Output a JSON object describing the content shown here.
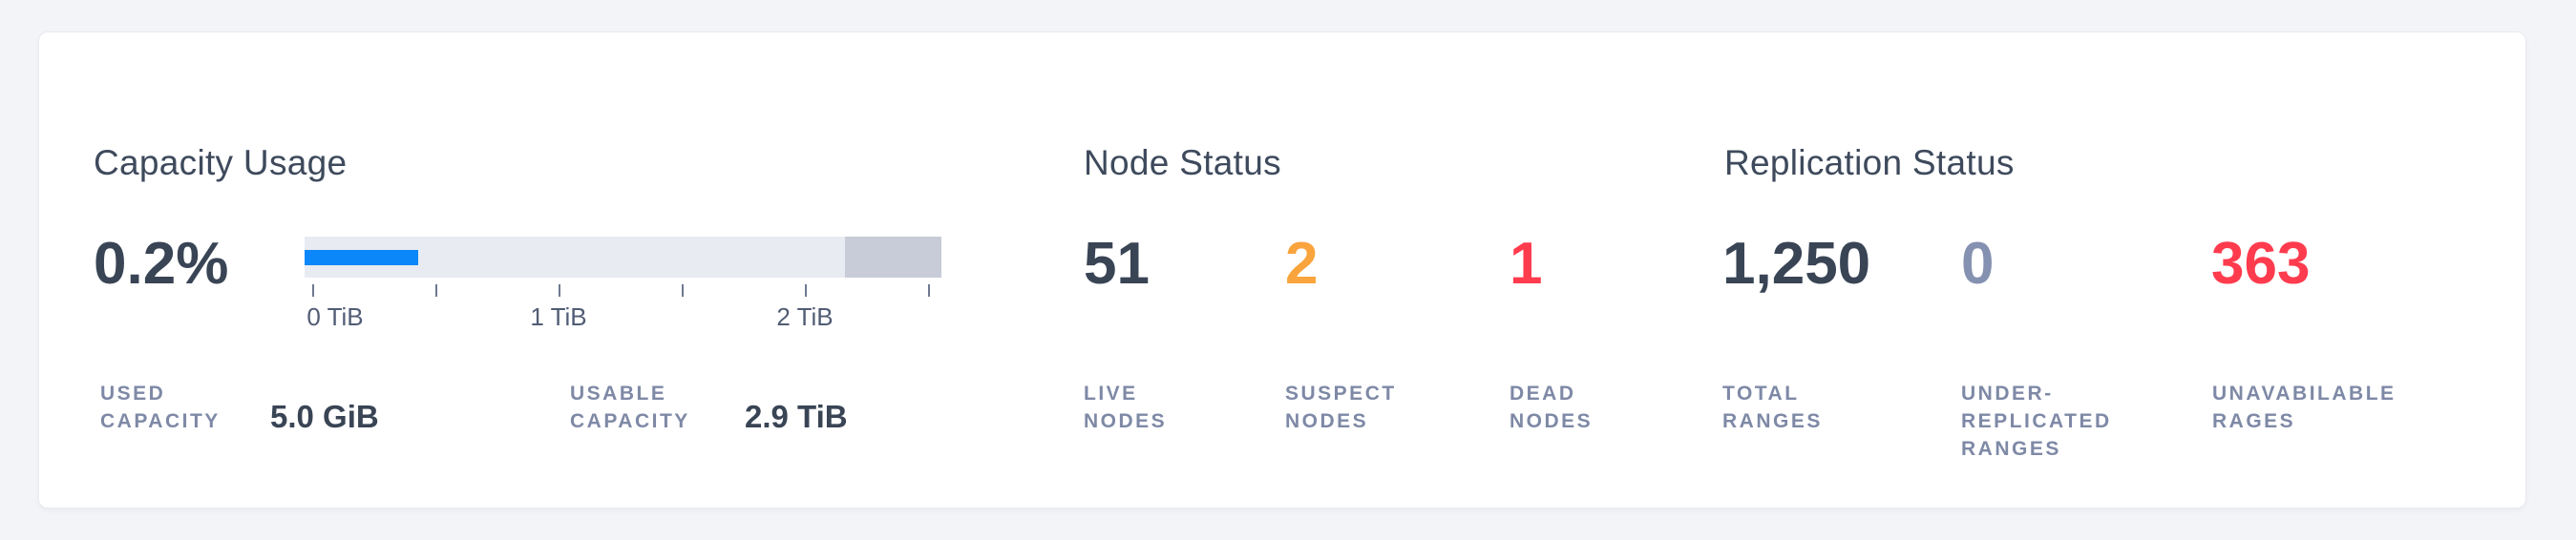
{
  "colors": {
    "dark": "#394455",
    "orange": "#f9a43c",
    "red": "#ff3b4e",
    "muted": "#8591b0",
    "label_gray": "#7e89a6",
    "bar_used_blue": "#0b87fa",
    "bar_track_gray": "#e8ebf2",
    "bar_tail_gray": "#c7ccd8"
  },
  "capacity": {
    "title": "Capacity Usage",
    "percent": "0.2%",
    "axis_ticks": [
      "0 TiB",
      "1 TiB",
      "2 TiB"
    ],
    "stats": [
      {
        "label": "USED\nCAPACITY",
        "value": "5.0 GiB"
      },
      {
        "label": "USABLE\nCAPACITY",
        "value": "2.9 TiB"
      }
    ]
  },
  "node_status": {
    "title": "Node Status",
    "stats": [
      {
        "value": "51",
        "label": "LIVE\nNODES"
      },
      {
        "value": "2",
        "label": "SUSPECT\nNODES"
      },
      {
        "value": "1",
        "label": "DEAD\nNODES"
      }
    ]
  },
  "replication": {
    "title": "Replication Status",
    "stats": [
      {
        "value": "1,250",
        "label": "TOTAL\nRANGES"
      },
      {
        "value": "0",
        "label": "UNDER-\nREPLICATED\nRANGES"
      },
      {
        "value": "363",
        "label": "UNAVABILABLE\nRAGES"
      }
    ]
  },
  "chart_data": {
    "type": "bar",
    "title": "Capacity Usage",
    "percent_used": 0.2,
    "used_capacity": "5.0 GiB",
    "usable_capacity": "2.9 TiB",
    "axis_tick_values_tib": [
      0,
      0.5,
      1,
      1.5,
      2,
      2.5
    ],
    "axis_tick_labels": [
      "0 TiB",
      "1 TiB",
      "2 TiB"
    ],
    "bar_fill_fraction": 0.18,
    "bar_tail_start_fraction": 0.85
  }
}
